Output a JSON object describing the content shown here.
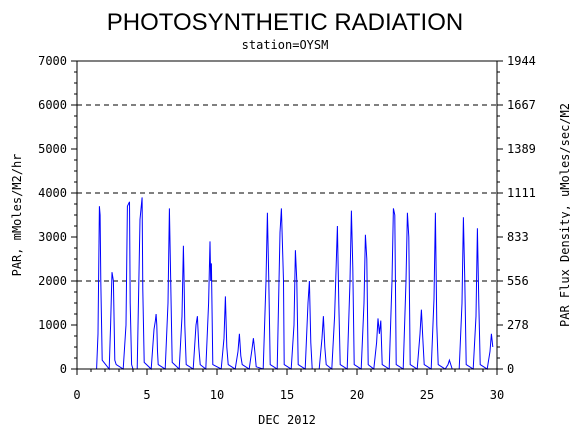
{
  "chart_data": {
    "type": "line",
    "title": "PHOTOSYNTHETIC RADIATION",
    "subtitle": "station=OYSM",
    "xlabel": "DEC 2012",
    "ylabel": "PAR, mMoles/M2/hr",
    "y2label": "PAR Flux Density, uMoles/sec/M2",
    "xlim": [
      0,
      30
    ],
    "ylim": [
      0,
      7000
    ],
    "x_ticks": [
      "0",
      "5",
      "10",
      "15",
      "20",
      "25",
      "30"
    ],
    "y_ticks": [
      "0",
      "1000",
      "2000",
      "3000",
      "4000",
      "5000",
      "6000",
      "7000"
    ],
    "y2_ticks": [
      "0",
      "278",
      "556",
      "833",
      "1111",
      "1389",
      "1667",
      "1944"
    ],
    "y2_tick_values": [
      0,
      1000,
      2000,
      3000,
      4000,
      5000,
      6000,
      7000
    ],
    "dashed_gridlines": [
      2000,
      4000,
      6000
    ],
    "series_color": "#0000ff",
    "series": [
      {
        "x": [
          1.4,
          1.5,
          1.6,
          1.65,
          1.7,
          1.8,
          2.3,
          2.4,
          2.5,
          2.6,
          2.7,
          2.8,
          3.3,
          3.5,
          3.6,
          3.75,
          3.8,
          3.9,
          4.0,
          4.3,
          4.5,
          4.65,
          4.7,
          4.8,
          5.3,
          5.5,
          5.6,
          5.65,
          5.7,
          5.75,
          5.8,
          6.3,
          6.5,
          6.6,
          6.75,
          6.8,
          7.3,
          7.5,
          7.6,
          7.65,
          7.7,
          7.8,
          8.3,
          8.5,
          8.6,
          8.7,
          8.8,
          9.2,
          9.4,
          9.5,
          9.55,
          9.6,
          9.7,
          10.3,
          10.5,
          10.6,
          10.7,
          10.8,
          11.3,
          11.5,
          11.6,
          11.7,
          11.8,
          12.3,
          12.5,
          12.6,
          12.7,
          12.8,
          13.3,
          13.5,
          13.6,
          13.7,
          13.8,
          14.3,
          14.5,
          14.6,
          14.75,
          14.8,
          15.3,
          15.5,
          15.6,
          15.7,
          15.8,
          16.3,
          16.5,
          16.6,
          16.7,
          16.8,
          17.3,
          17.5,
          17.6,
          17.7,
          17.8,
          18.2,
          18.4,
          18.6,
          18.7,
          18.8,
          19.3,
          19.5,
          19.6,
          19.7,
          19.8,
          20.3,
          20.5,
          20.6,
          20.7,
          20.8,
          21.2,
          21.4,
          21.5,
          21.6,
          21.7,
          21.8,
          22.3,
          22.5,
          22.6,
          22.7,
          22.8,
          23.3,
          23.5,
          23.6,
          23.7,
          23.8,
          24.3,
          24.5,
          24.6,
          24.7,
          24.8,
          25.3,
          25.5,
          25.6,
          25.7,
          25.8,
          26.3,
          26.5,
          26.6,
          26.7,
          26.8,
          27.3,
          27.5,
          27.6,
          27.7,
          27.8,
          28.3,
          28.5,
          28.6,
          28.7,
          28.8,
          29.3,
          29.5,
          29.6,
          29.7
        ],
        "y": [
          0,
          800,
          3700,
          3500,
          2000,
          200,
          0,
          1000,
          2200,
          2000,
          200,
          100,
          0,
          1000,
          3700,
          3800,
          1500,
          100,
          0,
          0,
          3400,
          3900,
          1800,
          150,
          0,
          900,
          1100,
          1250,
          1000,
          400,
          100,
          0,
          1500,
          3650,
          1000,
          150,
          0,
          1200,
          2800,
          2000,
          1000,
          100,
          0,
          1000,
          1200,
          500,
          100,
          0,
          1500,
          2900,
          2000,
          2400,
          100,
          0,
          700,
          1650,
          500,
          100,
          0,
          400,
          800,
          300,
          100,
          0,
          450,
          700,
          400,
          50,
          0,
          2000,
          3550,
          2000,
          100,
          0,
          3100,
          3650,
          2000,
          100,
          0,
          1000,
          2700,
          2000,
          100,
          0,
          1500,
          2000,
          600,
          0,
          0,
          700,
          1200,
          500,
          100,
          0,
          1200,
          3250,
          1500,
          100,
          0,
          2000,
          3600,
          2300,
          100,
          0,
          1500,
          3050,
          2500,
          100,
          0,
          600,
          1150,
          800,
          1100,
          100,
          0,
          2000,
          3650,
          3500,
          100,
          0,
          2000,
          3550,
          3000,
          100,
          0,
          800,
          1350,
          700,
          100,
          0,
          1600,
          3550,
          1000,
          100,
          0,
          100,
          200,
          100,
          0,
          0,
          1500,
          3450,
          2000,
          100,
          0,
          1200,
          3200,
          1500,
          100,
          0,
          400,
          800,
          500
        ]
      }
    ]
  }
}
